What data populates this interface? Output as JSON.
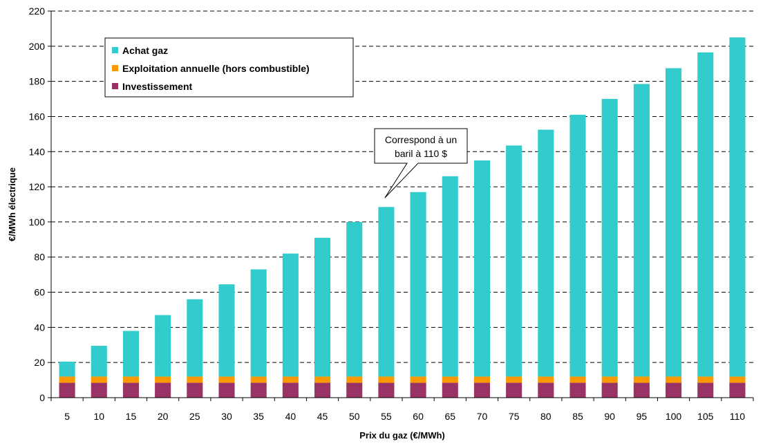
{
  "chart_data": {
    "type": "bar",
    "stacked": true,
    "categories": [
      "5",
      "10",
      "15",
      "20",
      "25",
      "30",
      "35",
      "40",
      "45",
      "50",
      "55",
      "60",
      "65",
      "70",
      "75",
      "80",
      "85",
      "90",
      "95",
      "100",
      "105",
      "110"
    ],
    "series": [
      {
        "name": "Investissement",
        "color": "#993366",
        "values": [
          8.5,
          8.5,
          8.5,
          8.5,
          8.5,
          8.5,
          8.5,
          8.5,
          8.5,
          8.5,
          8.5,
          8.5,
          8.5,
          8.5,
          8.5,
          8.5,
          8.5,
          8.5,
          8.5,
          8.5,
          8.5,
          8.5
        ]
      },
      {
        "name": "Exploitation annuelle (hors combustible)",
        "color": "#ff9900",
        "values": [
          3.5,
          3.5,
          3.5,
          3.5,
          3.5,
          3.5,
          3.5,
          3.5,
          3.5,
          3.5,
          3.5,
          3.5,
          3.5,
          3.5,
          3.5,
          3.5,
          3.5,
          3.5,
          3.5,
          3.5,
          3.5,
          3.5
        ]
      },
      {
        "name": "Achat gaz",
        "color": "#33cccc",
        "values": [
          8.5,
          17.5,
          26,
          35,
          44,
          52.5,
          61,
          70,
          79,
          88,
          96.5,
          105,
          114,
          123,
          131.5,
          140.5,
          149,
          158,
          166.5,
          175.5,
          184.5,
          193
        ]
      }
    ],
    "xlabel": "Prix du gaz (€/MWh)",
    "ylabel": "€/MWh électrique",
    "ylim": [
      0,
      220
    ],
    "yticks": [
      0,
      20,
      40,
      60,
      80,
      100,
      120,
      140,
      160,
      180,
      200,
      220
    ],
    "grid": "horizontal dashed",
    "legend": {
      "placement": "top-left",
      "entries": [
        "Achat gaz",
        "Exploitation annuelle (hors combustible)",
        "Investissement"
      ]
    },
    "annotation": {
      "lines": [
        "Correspond à un",
        "baril à 110 $"
      ],
      "target_category": "55"
    }
  }
}
